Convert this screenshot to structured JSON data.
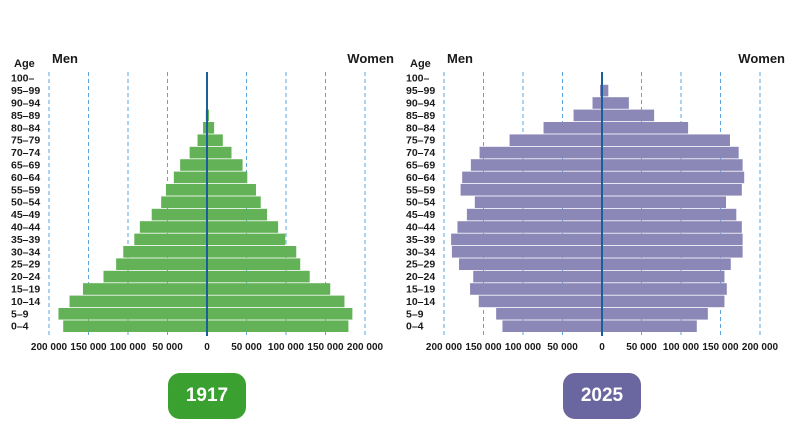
{
  "colors": {
    "bars_1917": "#63b257",
    "bars_2025": "#8b88b8",
    "badge_1917": "#3aa030",
    "badge_2025": "#6a669f",
    "axis_line": "#1a5e9a",
    "gridline": "#5ba4df"
  },
  "chart_data": [
    {
      "type": "bar",
      "orientation": "horizontal-population-pyramid",
      "title": "1917",
      "age_axis_label": "Age",
      "left_label": "Men",
      "right_label": "Women",
      "x_ticks": [
        "200 000",
        "150 000",
        "100 000",
        "50 000",
        "0",
        "50 000",
        "100 000",
        "150 000",
        "200 000"
      ],
      "xlim": [
        -200000,
        200000
      ],
      "grid": "vertical dashed at every 50 000",
      "categories": [
        "100–",
        "95–99",
        "90–94",
        "85–89",
        "80–84",
        "75–79",
        "70–74",
        "65–69",
        "60–64",
        "55–59",
        "50–54",
        "45–49",
        "40–44",
        "35–39",
        "30–34",
        "25–29",
        "20–24",
        "15–19",
        "10–14",
        "5–9",
        "0–4"
      ],
      "series": [
        {
          "name": "Men",
          "values": [
            0,
            0,
            500,
            1500,
            5000,
            12000,
            22000,
            34000,
            42000,
            52000,
            58000,
            70000,
            85000,
            92000,
            106000,
            115000,
            131000,
            157000,
            174000,
            188000,
            182000
          ]
        },
        {
          "name": "Women",
          "values": [
            0,
            0,
            800,
            2500,
            9000,
            20000,
            31000,
            45000,
            51000,
            62000,
            68000,
            76000,
            90000,
            99000,
            113000,
            118000,
            130000,
            156000,
            174000,
            184000,
            179000
          ]
        }
      ]
    },
    {
      "type": "bar",
      "orientation": "horizontal-population-pyramid",
      "title": "2025",
      "age_axis_label": "Age",
      "left_label": "Men",
      "right_label": "Women",
      "x_ticks": [
        "200 000",
        "150 000",
        "100 000",
        "50 000",
        "0",
        "50 000",
        "100 000",
        "150 000",
        "200 000"
      ],
      "xlim": [
        -200000,
        200000
      ],
      "grid": "vertical dashed at every 50 000",
      "categories": [
        "100–",
        "95–99",
        "90–94",
        "85–89",
        "80–84",
        "75–79",
        "70–74",
        "65–69",
        "60–64",
        "55–59",
        "50–54",
        "45–49",
        "40–44",
        "35–39",
        "30–34",
        "25–29",
        "20–24",
        "15–19",
        "10–14",
        "5–9",
        "0–4"
      ],
      "series": [
        {
          "name": "Men",
          "values": [
            500,
            2500,
            12000,
            36000,
            74000,
            117000,
            155000,
            166000,
            177000,
            179000,
            161000,
            171000,
            183000,
            191000,
            190000,
            181000,
            163000,
            167000,
            156000,
            134000,
            126000
          ]
        },
        {
          "name": "Women",
          "values": [
            1000,
            8000,
            34000,
            66000,
            109000,
            162000,
            173000,
            178000,
            180000,
            177000,
            157000,
            170000,
            177000,
            178000,
            178000,
            163000,
            155000,
            158000,
            155000,
            134000,
            120000
          ]
        }
      ]
    }
  ]
}
